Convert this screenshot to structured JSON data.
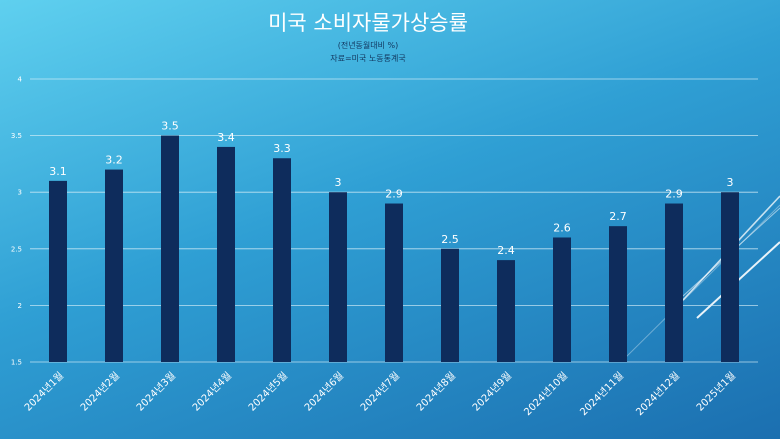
{
  "colors": {
    "bar": "#0e2c5c",
    "grid": "#d8eef8",
    "text": "#ffffff",
    "subtitle": "#12365e"
  },
  "chart_data": {
    "type": "bar",
    "title": "미국 소비자물가상승률",
    "subtitle": "(전년동월대비 %)",
    "source": "자료=미국 노동통계국",
    "categories": [
      "2024년1월",
      "2024년2월",
      "2024년3월",
      "2024년4월",
      "2024년5월",
      "2024년6월",
      "2024년7월",
      "2024년8월",
      "2024년9월",
      "2024년10월",
      "2024년11월",
      "2024년12월",
      "2025년1월"
    ],
    "values": [
      3.1,
      3.2,
      3.5,
      3.4,
      3.3,
      3,
      2.9,
      2.5,
      2.4,
      2.6,
      2.7,
      2.9,
      3
    ],
    "y_ticks": [
      "1.5",
      "2",
      "2.5",
      "3",
      "3.5",
      "4"
    ],
    "ylim": [
      1.5,
      4
    ],
    "grid": true,
    "legend": "none"
  }
}
